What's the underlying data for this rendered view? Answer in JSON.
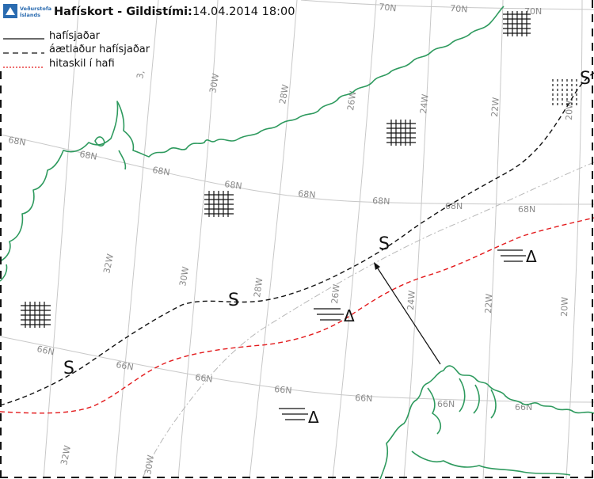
{
  "header": {
    "logo_text_line1": "Veðurstofa",
    "logo_text_line2": "Íslands",
    "title": "Hafískort - Gildistími:",
    "datetime": "14.04.2014 18:00"
  },
  "legend": {
    "items": [
      {
        "label": "hafísjaðar",
        "style": "solid",
        "color": "#111111"
      },
      {
        "label": "áætlaður hafísjaðar",
        "style": "dashed",
        "color": "#111111"
      },
      {
        "label": "hitaskil í hafi",
        "style": "dotted",
        "color": "#e31a1c"
      }
    ]
  },
  "grid_labels": {
    "lat_70_a": "70N",
    "lat_70_b": "70N",
    "lat_70_c": "70N",
    "lat_68_a": "68N",
    "lat_68_b": "68N",
    "lat_68_c": "68N",
    "lat_68_d": "68N",
    "lat_68_e": "68N",
    "lat_68_f": "68N",
    "lat_66_a": "66N",
    "lat_66_b": "66N",
    "lat_66_c": "66N",
    "lat_66_d": "66N",
    "lat_66_e": "66N",
    "lat_66_f": "66N",
    "lon_30_top": "30W",
    "lon_28_top": "28W",
    "lon_26_top": "26W",
    "lon_24_top": "24W",
    "lon_22_top": "22W",
    "lon_20_top": "20W",
    "lon_32_mid": "32W",
    "lon_30_mid": "30W",
    "lon_28_mid": "28W",
    "lon_26_mid": "26W",
    "lon_24_mid": "24W",
    "lon_22_mid": "22W",
    "lon_20_mid": "20W",
    "lon_32_bot": "32W",
    "lon_30_bot": "30W",
    "lon_partial": "3,"
  },
  "symbols": {
    "ice_edge_marker": "S",
    "triangle": "Δ"
  },
  "colors": {
    "coastline": "#2e9a5e",
    "ice_edge": "#111111",
    "ocean_front": "#e31a1c",
    "grid": "#c8c8c8",
    "logo_blue": "#2a6bb0"
  }
}
